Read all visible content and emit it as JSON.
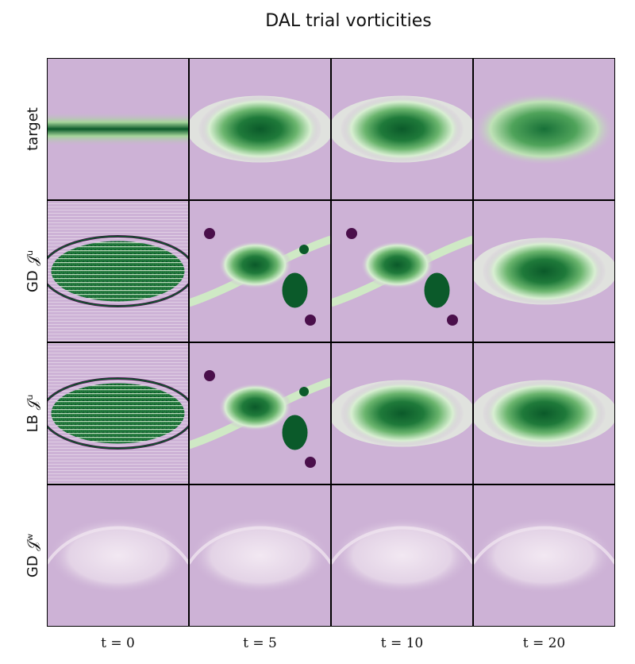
{
  "chart_data": {
    "type": "heatmap",
    "title": "DAL trial vorticities",
    "colormap": "PRGn",
    "colors": {
      "background_purple": "#cdb2d6",
      "deep_green": "#0b5a2a",
      "mid_green": "#3f9a52",
      "light_green": "#cfe9c5",
      "deep_purple": "#4a0f4b",
      "pale": "#efe3ef"
    },
    "rows": [
      {
        "label": "target"
      },
      {
        "label": "GD 𝒥ᵘ"
      },
      {
        "label": "LB 𝒥ᵘ"
      },
      {
        "label": "GD 𝒥ʷ"
      }
    ],
    "columns": [
      {
        "label": "t = 0"
      },
      {
        "label": "t = 5"
      },
      {
        "label": "t = 10"
      },
      {
        "label": "t = 20"
      }
    ],
    "panels": [
      [
        {
          "style": "band"
        },
        {
          "style": "eye-strong"
        },
        {
          "style": "eye-strong"
        },
        {
          "style": "eye-soft"
        }
      ],
      [
        {
          "style": "eye-noisy"
        },
        {
          "style": "roll-up"
        },
        {
          "style": "roll-up-partial"
        },
        {
          "style": "eye-strong"
        }
      ],
      [
        {
          "style": "eye-noisy"
        },
        {
          "style": "roll-up"
        },
        {
          "style": "eye-strong"
        },
        {
          "style": "eye-strong"
        }
      ],
      [
        {
          "style": "faint"
        },
        {
          "style": "faint"
        },
        {
          "style": "faint"
        },
        {
          "style": "faint"
        }
      ]
    ]
  }
}
